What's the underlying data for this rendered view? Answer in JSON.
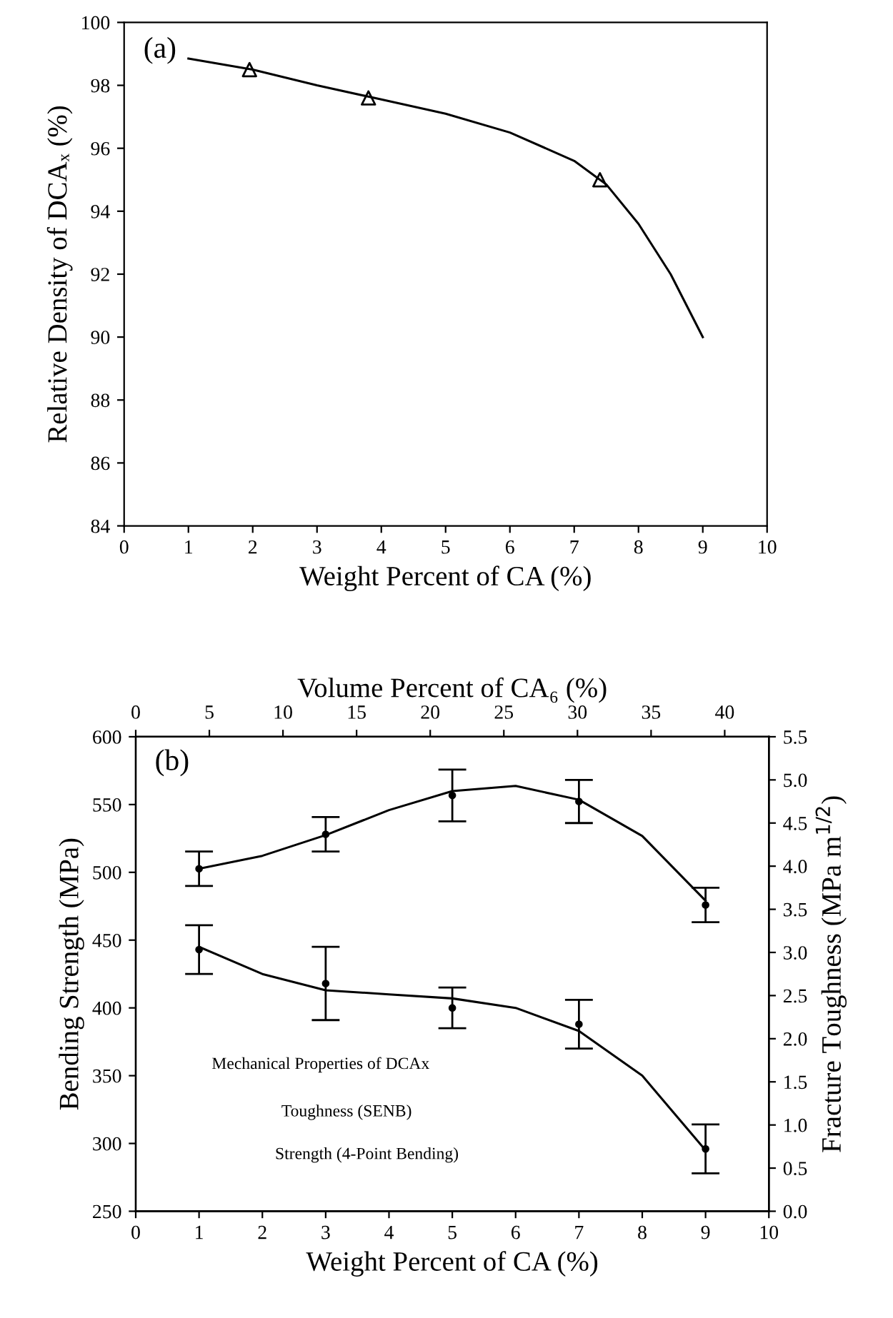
{
  "chart_data": [
    {
      "type": "scatter",
      "xlabel": "Weight Percent of CA (%)",
      "ylabel": "Relative Density of DCAₓ (%)",
      "annotations": [
        "(a)"
      ],
      "marker": "triangle",
      "legend": false,
      "grid": false,
      "xlim": [
        0,
        10
      ],
      "xticks": [
        0,
        1,
        2,
        3,
        4,
        5,
        6,
        7,
        8,
        9,
        10
      ],
      "ylim": [
        84,
        100
      ],
      "yticks": [
        84,
        86,
        88,
        90,
        92,
        94,
        96,
        98,
        100
      ],
      "series": [
        {
          "color": "#000000",
          "x": [
            1.95,
            3.8,
            7.4
          ],
          "values": [
            98.5,
            97.6,
            95.0
          ]
        },
        {
          "type": "line",
          "color": "#000000",
          "marker": "none",
          "x": [
            1,
            2,
            3,
            4,
            5,
            6,
            7,
            7.5,
            8,
            8.5,
            9
          ],
          "values": [
            98.85,
            98.5,
            98.0,
            97.55,
            97.1,
            96.5,
            95.6,
            94.85,
            93.6,
            92.0,
            90.0
          ]
        }
      ]
    },
    {
      "type": "scatter",
      "marker": "circle",
      "xlabel": "Weight Percent of CA (%)",
      "x2label": "Volume Percent of CA₆ (%)",
      "ylabel": "Bending Strength (MPa)",
      "y2label": "Fracture Toughness (MPa m$^{1/2}$)",
      "annotations": [
        "(b)",
        "Mechanical Properties of DCAx",
        "Toughness (SENB)",
        "Strength (4-Point Bending)"
      ],
      "legend": false,
      "grid": false,
      "xlim": [
        0,
        10
      ],
      "xticks": [
        0,
        1,
        2,
        3,
        4,
        5,
        6,
        7,
        8,
        9,
        10
      ],
      "x2lim": [
        0,
        43
      ],
      "x2ticks": [
        0,
        5,
        10,
        15,
        20,
        25,
        30,
        35,
        40
      ],
      "ylim": [
        250,
        600
      ],
      "yticks": [
        250,
        300,
        350,
        400,
        450,
        500,
        550,
        600
      ],
      "y2lim": [
        0,
        5.5
      ],
      "y2ticks": [
        {
          "value": 0,
          "label": "0.0"
        },
        0.5,
        {
          "value": 1,
          "label": "1.0"
        },
        1.5,
        {
          "value": 2,
          "label": "2.0"
        },
        2.5,
        {
          "value": 3,
          "label": "3.0"
        },
        3.5,
        {
          "value": 4,
          "label": "4.0"
        },
        4.5,
        {
          "value": 5,
          "label": "5.0"
        },
        5.5
      ],
      "series": [
        {
          "axis": "y2",
          "color": "#000000",
          "x": [
            1,
            3,
            5,
            7,
            9
          ],
          "values": [
            3.97,
            4.37,
            4.82,
            4.75,
            3.55
          ],
          "errors": [
            0.2,
            0.2,
            0.3,
            0.25,
            0.2
          ]
        },
        {
          "type": "line",
          "marker": "none",
          "axis": "y2",
          "color": "#000000",
          "x": [
            1,
            2,
            3,
            4,
            5,
            6,
            7,
            8,
            9
          ],
          "values": [
            3.97,
            4.12,
            4.36,
            4.65,
            4.87,
            4.93,
            4.77,
            4.35,
            3.6
          ]
        },
        {
          "axis": "y",
          "color": "#000000",
          "x": [
            1,
            3,
            5,
            7,
            9
          ],
          "values": [
            443,
            418,
            400,
            388,
            296
          ],
          "errors": [
            18,
            27,
            15,
            18,
            18
          ]
        },
        {
          "type": "line",
          "marker": "none",
          "axis": "y",
          "color": "#000000",
          "x": [
            1,
            2,
            3,
            4,
            5,
            6,
            7,
            8,
            9
          ],
          "values": [
            445,
            425,
            413,
            410,
            407,
            400,
            383,
            350,
            295
          ]
        }
      ]
    }
  ]
}
